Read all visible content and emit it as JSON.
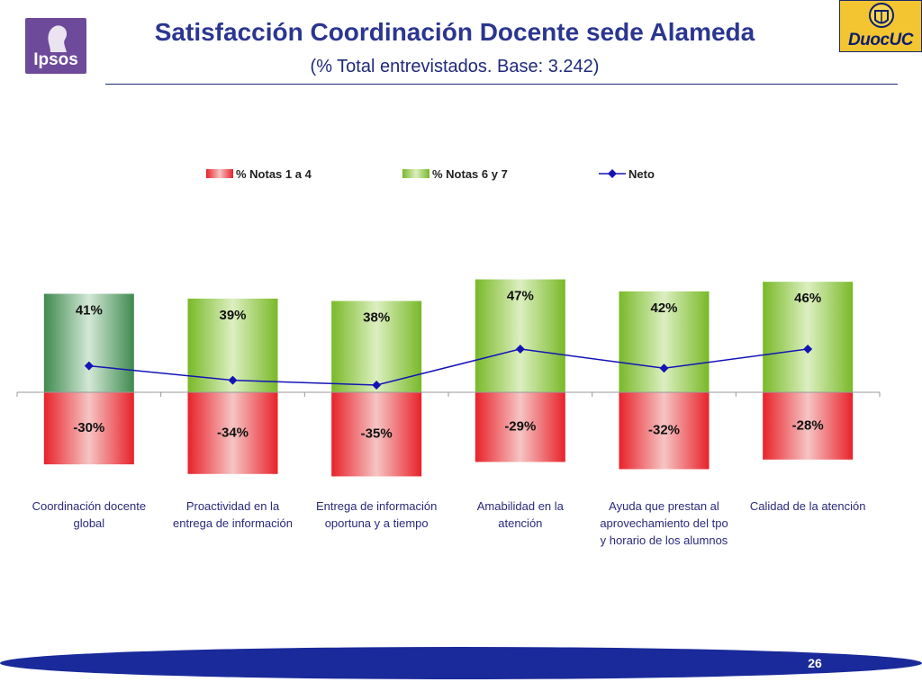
{
  "header": {
    "title": "Satisfacción Coordinación Docente sede Alameda",
    "subtitle": "(% Total entrevistados. Base: 3.242)"
  },
  "logos": {
    "left_text": "Ipsos",
    "right_text": "DuocUC"
  },
  "footer": {
    "page_number": "26"
  },
  "colors": {
    "negative": "#e8222a",
    "positive": "#79b928",
    "positive_highlight": "#3f8a4f",
    "line": "#1414b4",
    "title": "#2b3690"
  },
  "chart_data": {
    "type": "bar",
    "categories": [
      [
        "Coordinación docente",
        "global"
      ],
      [
        "Proactividad en la",
        "entrega de información"
      ],
      [
        "Entrega de información",
        "oportuna y a tiempo"
      ],
      [
        "Amabilidad en la",
        "atención"
      ],
      [
        "Ayuda que prestan al",
        "aprovechamiento del tpo",
        "y horario de los alumnos"
      ],
      [
        "Calidad de la atención"
      ]
    ],
    "series": [
      {
        "name": "% Notas 1 a 4",
        "values": [
          -30,
          -34,
          -35,
          -29,
          -32,
          -28
        ],
        "labels": [
          "-30%",
          "-34%",
          "-35%",
          "-29%",
          "-32%",
          "-28%"
        ]
      },
      {
        "name": "% Notas 6 y 7",
        "values": [
          41,
          39,
          38,
          47,
          42,
          46
        ],
        "labels": [
          "41%",
          "39%",
          "38%",
          "47%",
          "42%",
          "46%"
        ]
      },
      {
        "name": "Neto",
        "values": [
          11,
          5,
          3,
          18,
          10,
          18
        ]
      }
    ],
    "legend_position": "top-center",
    "grid": false
  }
}
